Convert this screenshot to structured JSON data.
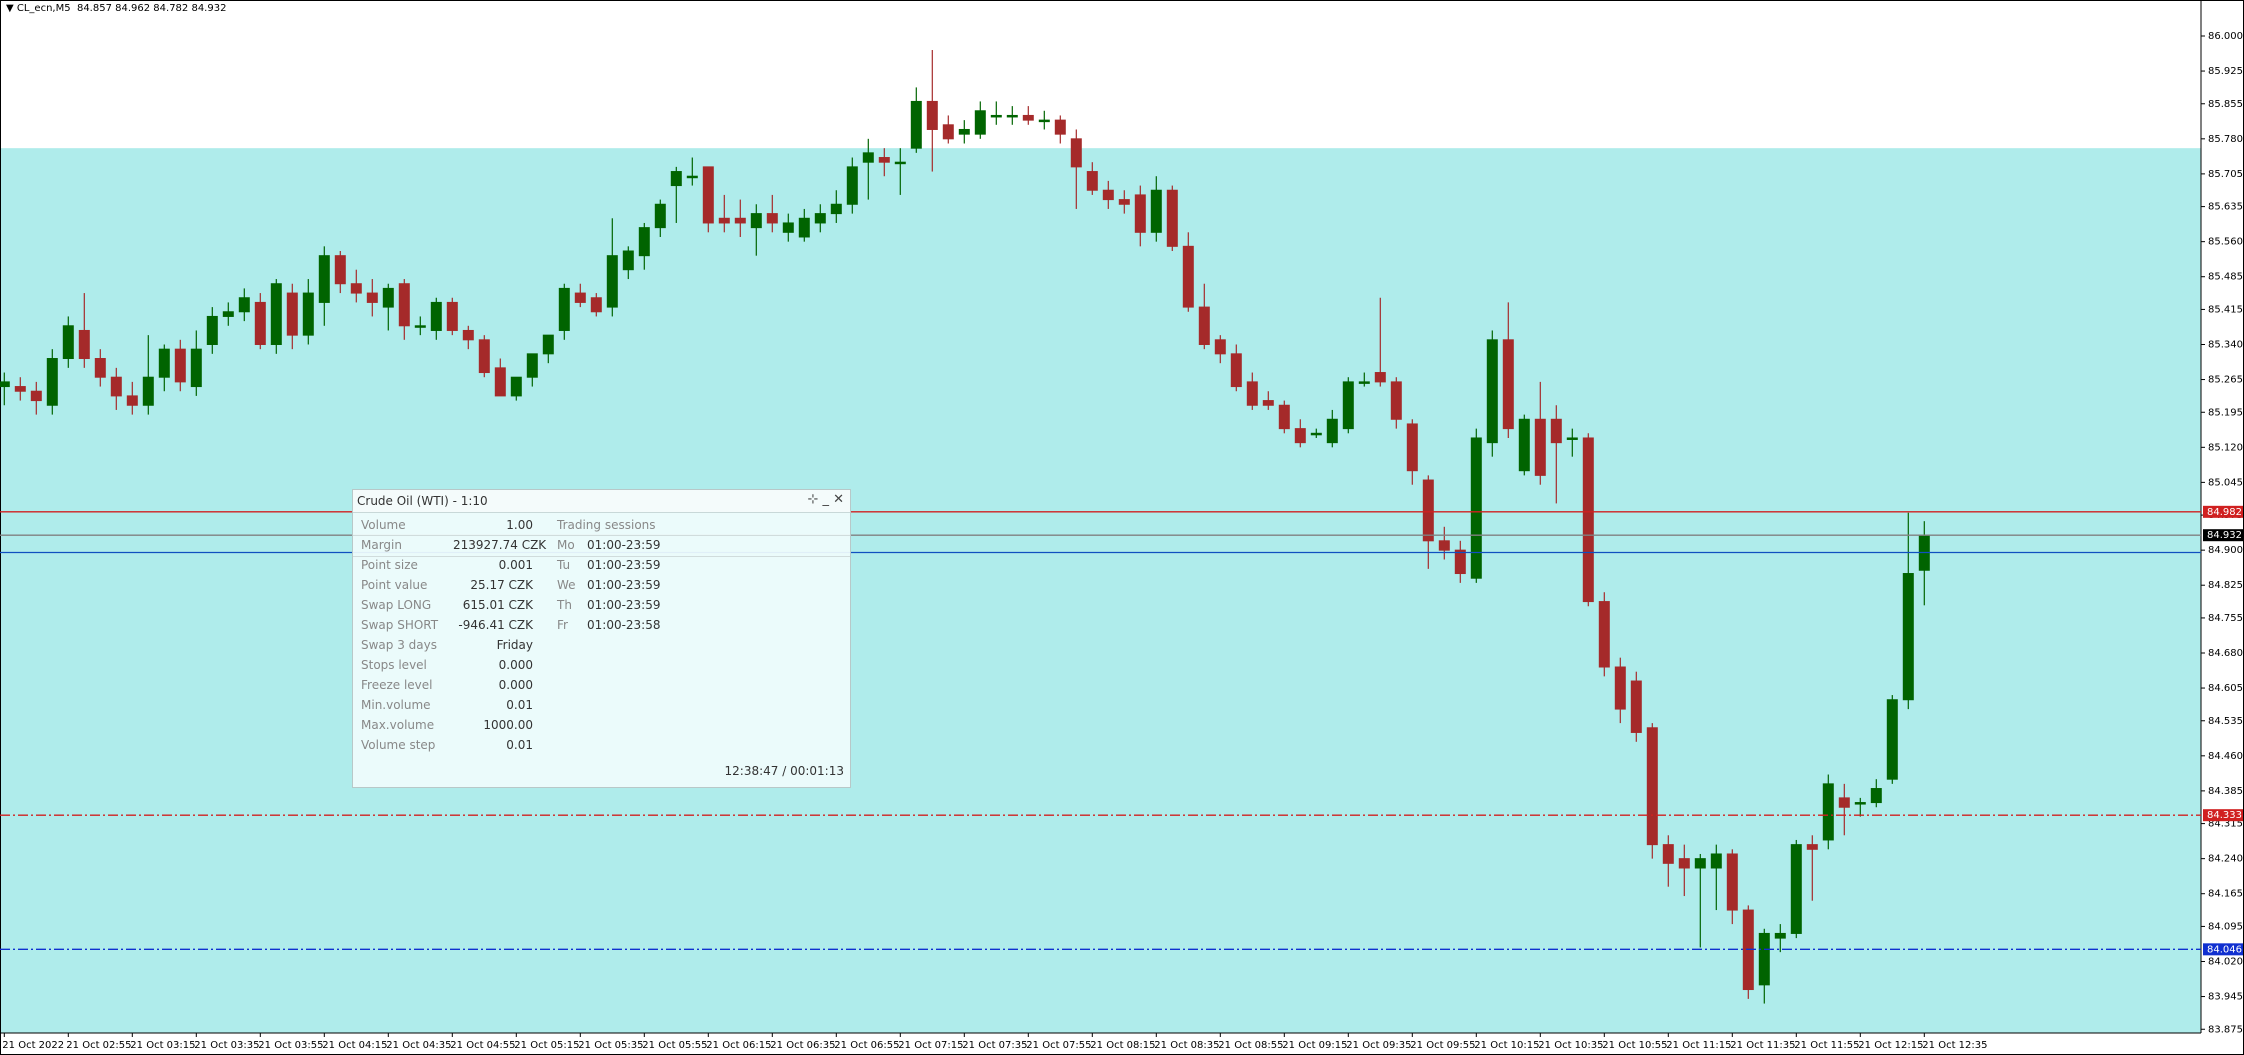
{
  "header": {
    "symbol": "CL_ecn,M5",
    "ohlc": "84.857 84.962 84.782 84.932"
  },
  "chart_data": {
    "type": "candlestick",
    "categories": [
      "21 Oct 2022",
      null,
      null,
      null,
      "21 Oct 02:55",
      null,
      null,
      null,
      "21 Oct 03:15",
      null,
      null,
      null,
      "21 Oct 03:35",
      null,
      null,
      null,
      "21 Oct 03:55",
      null,
      null,
      null,
      "21 Oct 04:15",
      null,
      null,
      null,
      "21 Oct 04:35",
      null,
      null,
      null,
      "21 Oct 04:55",
      null,
      null,
      null,
      "21 Oct 05:15",
      null,
      null,
      null,
      "21 Oct 05:35",
      null,
      null,
      null,
      "21 Oct 05:55",
      null,
      null,
      null,
      "21 Oct 06:15",
      null,
      null,
      null,
      "21 Oct 06:35",
      null,
      null,
      null,
      "21 Oct 06:55",
      null,
      null,
      null,
      "21 Oct 07:15",
      null,
      null,
      null,
      "21 Oct 07:35",
      null,
      null,
      null,
      "21 Oct 07:55",
      null,
      null,
      null,
      "21 Oct 08:15",
      null,
      null,
      null,
      "21 Oct 08:35",
      null,
      null,
      null,
      "21 Oct 08:55",
      null,
      null,
      null,
      "21 Oct 09:15",
      null,
      null,
      null,
      "21 Oct 09:35",
      null,
      null,
      null,
      "21 Oct 09:55",
      null,
      null,
      null,
      "21 Oct 10:15",
      null,
      null,
      null,
      "21 Oct 10:35",
      null,
      null,
      null,
      "21 Oct 10:55",
      null,
      null,
      null,
      "21 Oct 11:15",
      null,
      null,
      null,
      "21 Oct 11:35",
      null,
      null,
      null,
      "21 Oct 11:55",
      null,
      null,
      null,
      "21 Oct 12:15",
      null,
      null,
      null,
      "21 Oct 12:35"
    ],
    "ohlc": [
      [
        85.25,
        85.28,
        85.21,
        85.26
      ],
      [
        85.25,
        85.27,
        85.22,
        85.24
      ],
      [
        85.24,
        85.26,
        85.19,
        85.22
      ],
      [
        85.21,
        85.33,
        85.19,
        85.31
      ],
      [
        85.31,
        85.4,
        85.29,
        85.38
      ],
      [
        85.37,
        85.45,
        85.29,
        85.31
      ],
      [
        85.31,
        85.33,
        85.25,
        85.27
      ],
      [
        85.27,
        85.29,
        85.2,
        85.23
      ],
      [
        85.23,
        85.26,
        85.19,
        85.21
      ],
      [
        85.21,
        85.36,
        85.19,
        85.27
      ],
      [
        85.27,
        85.34,
        85.24,
        85.33
      ],
      [
        85.33,
        85.35,
        85.24,
        85.26
      ],
      [
        85.25,
        85.37,
        85.23,
        85.33
      ],
      [
        85.34,
        85.42,
        85.32,
        85.4
      ],
      [
        85.4,
        85.43,
        85.38,
        85.41
      ],
      [
        85.41,
        85.46,
        85.39,
        85.44
      ],
      [
        85.43,
        85.45,
        85.33,
        85.34
      ],
      [
        85.34,
        85.48,
        85.32,
        85.47
      ],
      [
        85.45,
        85.47,
        85.33,
        85.36
      ],
      [
        85.36,
        85.48,
        85.34,
        85.45
      ],
      [
        85.43,
        85.55,
        85.38,
        85.53
      ],
      [
        85.53,
        85.54,
        85.45,
        85.47
      ],
      [
        85.47,
        85.5,
        85.43,
        85.45
      ],
      [
        85.45,
        85.48,
        85.4,
        85.43
      ],
      [
        85.42,
        85.47,
        85.37,
        85.46
      ],
      [
        85.47,
        85.48,
        85.35,
        85.38
      ],
      [
        85.38,
        85.4,
        85.36,
        85.38
      ],
      [
        85.37,
        85.44,
        85.35,
        85.43
      ],
      [
        85.43,
        85.44,
        85.36,
        85.37
      ],
      [
        85.37,
        85.38,
        85.33,
        85.35
      ],
      [
        85.35,
        85.36,
        85.27,
        85.28
      ],
      [
        85.29,
        85.31,
        85.23,
        85.23
      ],
      [
        85.23,
        85.27,
        85.22,
        85.27
      ],
      [
        85.27,
        85.32,
        85.25,
        85.32
      ],
      [
        85.32,
        85.36,
        85.3,
        85.36
      ],
      [
        85.37,
        85.47,
        85.35,
        85.46
      ],
      [
        85.45,
        85.47,
        85.42,
        85.43
      ],
      [
        85.44,
        85.45,
        85.4,
        85.41
      ],
      [
        85.42,
        85.61,
        85.4,
        85.53
      ],
      [
        85.5,
        85.55,
        85.48,
        85.54
      ],
      [
        85.53,
        85.6,
        85.5,
        85.59
      ],
      [
        85.59,
        85.65,
        85.57,
        85.64
      ],
      [
        85.68,
        85.72,
        85.6,
        85.71
      ],
      [
        85.7,
        85.74,
        85.68,
        85.7
      ],
      [
        85.72,
        85.72,
        85.58,
        85.6
      ],
      [
        85.61,
        85.66,
        85.58,
        85.6
      ],
      [
        85.61,
        85.65,
        85.57,
        85.6
      ],
      [
        85.59,
        85.64,
        85.53,
        85.62
      ],
      [
        85.62,
        85.66,
        85.58,
        85.6
      ],
      [
        85.58,
        85.62,
        85.56,
        85.6
      ],
      [
        85.57,
        85.63,
        85.56,
        85.61
      ],
      [
        85.6,
        85.64,
        85.58,
        85.62
      ],
      [
        85.62,
        85.67,
        85.6,
        85.64
      ],
      [
        85.64,
        85.74,
        85.62,
        85.72
      ],
      [
        85.73,
        85.78,
        85.65,
        85.75
      ],
      [
        85.74,
        85.76,
        85.7,
        85.73
      ],
      [
        85.73,
        85.76,
        85.66,
        85.73
      ],
      [
        85.76,
        85.89,
        85.75,
        85.86
      ],
      [
        85.86,
        85.97,
        85.71,
        85.8
      ],
      [
        85.81,
        85.83,
        85.77,
        85.78
      ],
      [
        85.79,
        85.82,
        85.77,
        85.8
      ],
      [
        85.79,
        85.86,
        85.78,
        85.84
      ],
      [
        85.83,
        85.86,
        85.81,
        85.83
      ],
      [
        85.83,
        85.85,
        85.81,
        85.83
      ],
      [
        85.83,
        85.85,
        85.81,
        85.82
      ],
      [
        85.82,
        85.84,
        85.8,
        85.82
      ],
      [
        85.82,
        85.83,
        85.77,
        85.79
      ],
      [
        85.78,
        85.8,
        85.63,
        85.72
      ],
      [
        85.71,
        85.73,
        85.66,
        85.67
      ],
      [
        85.67,
        85.69,
        85.63,
        85.65
      ],
      [
        85.65,
        85.67,
        85.62,
        85.64
      ],
      [
        85.66,
        85.68,
        85.55,
        85.58
      ],
      [
        85.58,
        85.7,
        85.56,
        85.67
      ],
      [
        85.67,
        85.68,
        85.54,
        85.55
      ],
      [
        85.55,
        85.58,
        85.41,
        85.42
      ],
      [
        85.42,
        85.47,
        85.33,
        85.34
      ],
      [
        85.35,
        85.36,
        85.3,
        85.32
      ],
      [
        85.32,
        85.34,
        85.24,
        85.25
      ],
      [
        85.26,
        85.28,
        85.2,
        85.21
      ],
      [
        85.22,
        85.24,
        85.2,
        85.21
      ],
      [
        85.21,
        85.22,
        85.15,
        85.16
      ],
      [
        85.16,
        85.18,
        85.12,
        85.13
      ],
      [
        85.15,
        85.16,
        85.14,
        85.15
      ],
      [
        85.13,
        85.2,
        85.12,
        85.18
      ],
      [
        85.16,
        85.27,
        85.15,
        85.26
      ],
      [
        85.26,
        85.28,
        85.25,
        85.26
      ],
      [
        85.28,
        85.44,
        85.25,
        85.26
      ],
      [
        85.26,
        85.27,
        85.16,
        85.18
      ],
      [
        85.17,
        85.18,
        85.04,
        85.07
      ],
      [
        85.05,
        85.06,
        84.86,
        84.92
      ],
      [
        84.92,
        84.95,
        84.88,
        84.9
      ],
      [
        84.9,
        84.92,
        84.83,
        84.85
      ],
      [
        84.84,
        85.16,
        84.83,
        85.14
      ],
      [
        85.13,
        85.37,
        85.1,
        85.35
      ],
      [
        85.35,
        85.43,
        85.14,
        85.16
      ],
      [
        85.07,
        85.19,
        85.06,
        85.18
      ],
      [
        85.18,
        85.26,
        85.04,
        85.06
      ],
      [
        85.18,
        85.21,
        85.0,
        85.13
      ],
      [
        85.14,
        85.16,
        85.1,
        85.14
      ],
      [
        85.14,
        85.15,
        84.78,
        84.79
      ],
      [
        84.79,
        84.81,
        84.63,
        84.65
      ],
      [
        84.65,
        84.67,
        84.53,
        84.56
      ],
      [
        84.62,
        84.64,
        84.49,
        84.51
      ],
      [
        84.52,
        84.53,
        84.24,
        84.27
      ],
      [
        84.27,
        84.29,
        84.18,
        84.23
      ],
      [
        84.24,
        84.27,
        84.16,
        84.22
      ],
      [
        84.22,
        84.25,
        84.05,
        84.24
      ],
      [
        84.22,
        84.27,
        84.13,
        84.25
      ],
      [
        84.25,
        84.26,
        84.1,
        84.13
      ],
      [
        84.13,
        84.14,
        83.94,
        83.96
      ],
      [
        83.97,
        84.09,
        83.93,
        84.08
      ],
      [
        84.07,
        84.1,
        84.04,
        84.08
      ],
      [
        84.08,
        84.28,
        84.07,
        84.27
      ],
      [
        84.27,
        84.29,
        84.15,
        84.26
      ],
      [
        84.28,
        84.42,
        84.26,
        84.4
      ],
      [
        84.37,
        84.4,
        84.29,
        84.35
      ],
      [
        84.36,
        84.37,
        84.33,
        84.36
      ],
      [
        84.36,
        84.41,
        84.35,
        84.39
      ],
      [
        84.41,
        84.59,
        84.4,
        84.58
      ],
      [
        84.58,
        84.98,
        84.56,
        84.85
      ],
      [
        84.857,
        84.962,
        84.782,
        84.932
      ]
    ],
    "up_color": "#006400",
    "down_color": "#a52a2a",
    "background": "#afeceb",
    "zone_top": 85.76,
    "ylim": [
      83.867,
      86.077
    ],
    "yticks": [
      {
        "value": 86.0,
        "label": "86.000"
      },
      {
        "value": 85.925,
        "label": "85.925"
      },
      {
        "value": 85.855,
        "label": "85.855"
      },
      {
        "value": 85.78,
        "label": "85.780"
      },
      {
        "value": 85.705,
        "label": "85.705"
      },
      {
        "value": 85.635,
        "label": "85.635"
      },
      {
        "value": 85.56,
        "label": "85.560"
      },
      {
        "value": 85.485,
        "label": "85.485"
      },
      {
        "value": 85.415,
        "label": "85.415"
      },
      {
        "value": 85.34,
        "label": "85.340"
      },
      {
        "value": 85.265,
        "label": "85.265"
      },
      {
        "value": 85.195,
        "label": "85.195"
      },
      {
        "value": 85.12,
        "label": "85.120"
      },
      {
        "value": 85.045,
        "label": "85.045"
      },
      {
        "value": 84.975,
        "label": "84.975"
      },
      {
        "value": 84.9,
        "label": "84.900"
      },
      {
        "value": 84.825,
        "label": "84.825"
      },
      {
        "value": 84.755,
        "label": "84.755"
      },
      {
        "value": 84.68,
        "label": "84.680"
      },
      {
        "value": 84.605,
        "label": "84.605"
      },
      {
        "value": 84.535,
        "label": "84.535"
      },
      {
        "value": 84.46,
        "label": "84.460"
      },
      {
        "value": 84.385,
        "label": "84.385"
      },
      {
        "value": 84.315,
        "label": "84.315"
      },
      {
        "value": 84.24,
        "label": "84.240"
      },
      {
        "value": 84.165,
        "label": "84.165"
      },
      {
        "value": 84.095,
        "label": "84.095"
      },
      {
        "value": 84.02,
        "label": "84.020"
      },
      {
        "value": 83.945,
        "label": "83.945"
      },
      {
        "value": 83.875,
        "label": "83.875"
      }
    ],
    "levels": [
      {
        "value": 84.982,
        "label": "84.982",
        "color": "#d02020",
        "style": "solid"
      },
      {
        "value": 84.932,
        "label": "84.932",
        "color": "#808080",
        "label_bg": "#000000",
        "style": "solid"
      },
      {
        "value": 84.895,
        "color": "#1050c0",
        "style": "solid"
      },
      {
        "value": 84.333,
        "label": "84.333",
        "color": "#d02020",
        "style": "dashdot"
      },
      {
        "value": 84.046,
        "label": "84.046",
        "color": "#1030d0",
        "style": "dashdot"
      }
    ]
  },
  "panel": {
    "title": "Crude Oil (WTI) - 1:10",
    "rows": [
      [
        "Volume",
        "1.00"
      ],
      [
        "Margin",
        "213927.74 CZK"
      ],
      [
        "Point size",
        "0.001"
      ],
      [
        "Point value",
        "25.17 CZK"
      ],
      [
        "Swap LONG",
        "615.01 CZK"
      ],
      [
        "Swap SHORT",
        "-946.41 CZK"
      ],
      [
        "Swap 3 days",
        "Friday"
      ],
      [
        "Stops level",
        "0.000"
      ],
      [
        "Freeze level",
        "0.000"
      ],
      [
        "Min.volume",
        "0.01"
      ],
      [
        "Max.volume",
        "1000.00"
      ],
      [
        "Volume step",
        "0.01"
      ]
    ],
    "sessions_title": "Trading sessions",
    "sessions": [
      [
        "Mo",
        "01:00-23:59"
      ],
      [
        "Tu",
        "01:00-23:59"
      ],
      [
        "We",
        "01:00-23:59"
      ],
      [
        "Th",
        "01:00-23:59"
      ],
      [
        "Fr",
        "01:00-23:58"
      ]
    ],
    "time": "12:38:47 / 00:01:13"
  }
}
